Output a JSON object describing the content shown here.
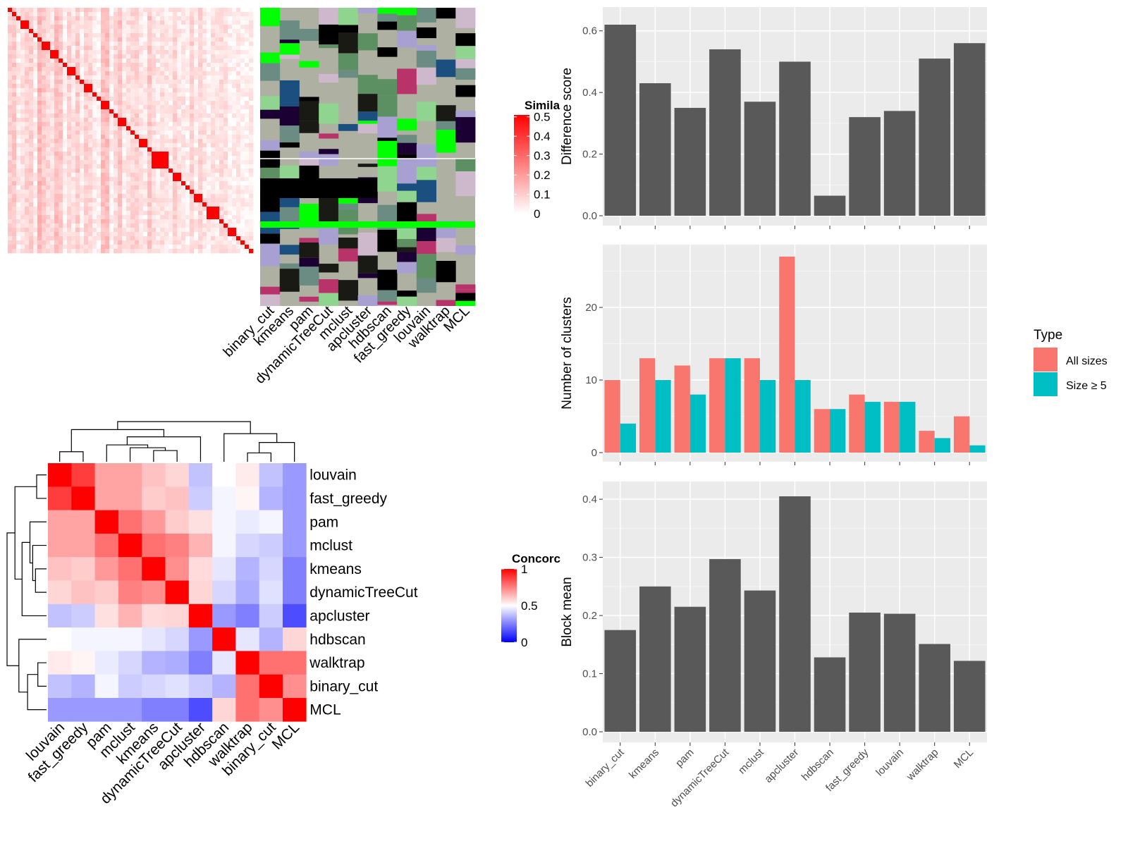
{
  "chart_data": [
    {
      "id": "similarity",
      "type": "heatmap",
      "legend": {
        "title": "Similarity",
        "visible_title": "Simila",
        "ticks": [
          0,
          0.1,
          0.2,
          0.3,
          0.4,
          0.5
        ],
        "tick_labels": [
          "0",
          "0.1",
          "0.2",
          "0.3",
          "0.4",
          "0.5"
        ],
        "colors": [
          "#ffffff",
          "#ff0000"
        ]
      },
      "methods": [
        "binary_cut",
        "kmeans",
        "pam",
        "dynamicTreeCut",
        "mclust",
        "apcluster",
        "hdbscan",
        "fast_greedy",
        "louvain",
        "walktrap",
        "MCL"
      ]
    },
    {
      "id": "concordance",
      "type": "heatmap",
      "legend": {
        "title": "Concordance",
        "visible_title": "Concorc",
        "ticks": [
          0,
          0.5,
          1
        ],
        "tick_labels": [
          "0",
          "0.5",
          "1"
        ],
        "colors": [
          "#0000ff",
          "#ffffff",
          "#ff0000"
        ]
      },
      "rows": [
        "louvain",
        "fast_greedy",
        "pam",
        "mclust",
        "kmeans",
        "dynamicTreeCut",
        "apcluster",
        "hdbscan",
        "walktrap",
        "binary_cut",
        "MCL"
      ],
      "cols": [
        "louvain",
        "fast_greedy",
        "pam",
        "mclust",
        "kmeans",
        "dynamicTreeCut",
        "apcluster",
        "hdbscan",
        "walktrap",
        "binary_cut",
        "MCL"
      ],
      "values": [
        [
          1.0,
          0.88,
          0.68,
          0.68,
          0.62,
          0.58,
          0.38,
          0.5,
          0.54,
          0.38,
          0.3
        ],
        [
          0.88,
          1.0,
          0.68,
          0.68,
          0.6,
          0.62,
          0.4,
          0.48,
          0.52,
          0.35,
          0.3
        ],
        [
          0.68,
          0.68,
          1.0,
          0.78,
          0.7,
          0.6,
          0.56,
          0.48,
          0.46,
          0.48,
          0.3
        ],
        [
          0.68,
          0.68,
          0.78,
          1.0,
          0.78,
          0.75,
          0.65,
          0.48,
          0.42,
          0.4,
          0.3
        ],
        [
          0.62,
          0.6,
          0.7,
          0.78,
          1.0,
          0.72,
          0.57,
          0.45,
          0.35,
          0.42,
          0.25
        ],
        [
          0.58,
          0.62,
          0.6,
          0.75,
          0.72,
          1.0,
          0.58,
          0.42,
          0.34,
          0.44,
          0.25
        ],
        [
          0.38,
          0.4,
          0.56,
          0.65,
          0.57,
          0.58,
          1.0,
          0.3,
          0.25,
          0.4,
          0.15
        ],
        [
          0.5,
          0.48,
          0.48,
          0.48,
          0.45,
          0.42,
          0.3,
          1.0,
          0.45,
          0.35,
          0.58
        ],
        [
          0.54,
          0.52,
          0.46,
          0.42,
          0.35,
          0.34,
          0.25,
          0.45,
          1.0,
          0.78,
          0.78
        ],
        [
          0.38,
          0.35,
          0.48,
          0.4,
          0.42,
          0.44,
          0.4,
          0.35,
          0.78,
          1.0,
          0.72
        ],
        [
          0.3,
          0.3,
          0.3,
          0.3,
          0.25,
          0.25,
          0.15,
          0.58,
          0.78,
          0.72,
          1.0
        ]
      ]
    },
    {
      "id": "difference",
      "type": "bar",
      "ylabel": "Difference score",
      "categories": [
        "binary_cut",
        "kmeans",
        "pam",
        "dynamicTreeCut",
        "mclust",
        "apcluster",
        "hdbscan",
        "fast_greedy",
        "louvain",
        "walktrap",
        "MCL"
      ],
      "values": [
        0.62,
        0.43,
        0.35,
        0.54,
        0.37,
        0.5,
        0.065,
        0.32,
        0.34,
        0.51,
        0.56
      ],
      "ylim": [
        0,
        0.62
      ],
      "yticks": [
        0.0,
        0.2,
        0.4,
        0.6
      ],
      "ytick_labels": [
        "0.0",
        "0.2",
        "0.4",
        "0.6"
      ],
      "grid": true
    },
    {
      "id": "clusters",
      "type": "bar",
      "ylabel": "Number of clusters",
      "categories": [
        "binary_cut",
        "kmeans",
        "pam",
        "dynamicTreeCut",
        "mclust",
        "apcluster",
        "hdbscan",
        "fast_greedy",
        "louvain",
        "walktrap",
        "MCL"
      ],
      "series": [
        {
          "name": "All sizes",
          "color": "#f8766d",
          "values": [
            10,
            13,
            12,
            13,
            13,
            27,
            6,
            8,
            7,
            3,
            5
          ]
        },
        {
          "name": "Size ≥ 5",
          "color": "#00bfc4",
          "values": [
            4,
            10,
            8,
            13,
            10,
            10,
            6,
            7,
            7,
            2,
            1
          ]
        }
      ],
      "legend": {
        "title": "Type",
        "position": "right"
      },
      "ylim": [
        0,
        27
      ],
      "yticks": [
        0,
        10,
        20
      ],
      "ytick_labels": [
        "0",
        "10",
        "20"
      ],
      "grid": true
    },
    {
      "id": "blockmean",
      "type": "bar",
      "ylabel": "Block mean",
      "categories": [
        "binary_cut",
        "kmeans",
        "pam",
        "dynamicTreeCut",
        "mclust",
        "apcluster",
        "hdbscan",
        "fast_greedy",
        "louvain",
        "walktrap",
        "MCL"
      ],
      "values": [
        0.175,
        0.25,
        0.215,
        0.297,
        0.243,
        0.405,
        0.128,
        0.205,
        0.203,
        0.151,
        0.122
      ],
      "ylim": [
        0,
        0.405
      ],
      "yticks": [
        0.0,
        0.1,
        0.2,
        0.3,
        0.4
      ],
      "ytick_labels": [
        "0.0",
        "0.1",
        "0.2",
        "0.3",
        "0.4"
      ],
      "grid": true
    }
  ]
}
